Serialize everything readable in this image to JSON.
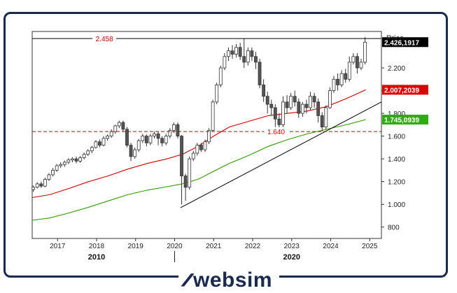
{
  "brand": {
    "name": "websim",
    "icon": "websim-w-logo-icon",
    "color": "#1a2a4f"
  },
  "chart_data": {
    "type": "candlestick",
    "price_axis_label": "Price",
    "y_ticks": [
      800,
      1000,
      1200,
      1400,
      1600,
      1800,
      2000,
      2200
    ],
    "y_tick_labels": [
      "800",
      "1.000",
      "1.200",
      "1.400",
      "1.600",
      "1.800",
      "2.000",
      "2.200"
    ],
    "x_ticks": [
      2017,
      2018,
      2019,
      2020,
      2021,
      2022,
      2023,
      2024,
      2025
    ],
    "x_tick_labels": [
      "2017",
      "2018",
      "2019",
      "2020",
      "2021",
      "2022",
      "2023",
      "2024",
      "2025"
    ],
    "decade_labels": [
      {
        "year": 2018,
        "label": "2010"
      },
      {
        "year": 2023,
        "label": "2020"
      }
    ],
    "decade_separator_year": 2020,
    "ylim": [
      700,
      2520
    ],
    "xlim": [
      2016.35,
      2025.3
    ],
    "grid": false,
    "horizontal_lines": [
      {
        "value": 2458,
        "label": "2.458",
        "color": "#000000",
        "style": "solid",
        "label_color": "#cc0000",
        "label_year": 2018.2
      },
      {
        "value": 1640,
        "label": "1.640",
        "color": "#cc0000",
        "style": "dashed",
        "label_color": "#cc0000",
        "label_year": 2022.6
      }
    ],
    "price_tags": [
      {
        "value": 2426.1917,
        "label": "2.426,1917",
        "bg": "#000000",
        "fg": "#ffffff"
      },
      {
        "value": 2007.2039,
        "label": "2.007,2039",
        "bg": "#dd0000",
        "fg": "#ffffff"
      },
      {
        "value": 1745.0939,
        "label": "1.745,0939",
        "bg": "#33aa11",
        "fg": "#ffffff"
      }
    ],
    "trendline": {
      "from": [
        2020.15,
        970
      ],
      "to": [
        2025.3,
        1900
      ],
      "color": "#000000"
    },
    "moving_averages": [
      {
        "color": "#cc0000",
        "points": [
          [
            2016.35,
            1060
          ],
          [
            2016.8,
            1085
          ],
          [
            2017.3,
            1140
          ],
          [
            2017.8,
            1200
          ],
          [
            2018.3,
            1250
          ],
          [
            2018.8,
            1310
          ],
          [
            2019.3,
            1360
          ],
          [
            2019.8,
            1400
          ],
          [
            2020.2,
            1440
          ],
          [
            2020.6,
            1510
          ],
          [
            2021.0,
            1600
          ],
          [
            2021.4,
            1680
          ],
          [
            2021.9,
            1730
          ],
          [
            2022.4,
            1780
          ],
          [
            2022.9,
            1800
          ],
          [
            2023.4,
            1820
          ],
          [
            2023.9,
            1860
          ],
          [
            2024.4,
            1930
          ],
          [
            2024.9,
            2007
          ]
        ]
      },
      {
        "color": "#339900",
        "points": [
          [
            2016.35,
            860
          ],
          [
            2016.8,
            880
          ],
          [
            2017.3,
            925
          ],
          [
            2017.8,
            975
          ],
          [
            2018.3,
            1030
          ],
          [
            2018.8,
            1085
          ],
          [
            2019.3,
            1125
          ],
          [
            2019.8,
            1155
          ],
          [
            2020.2,
            1180
          ],
          [
            2020.6,
            1220
          ],
          [
            2021.0,
            1290
          ],
          [
            2021.4,
            1360
          ],
          [
            2021.9,
            1430
          ],
          [
            2022.4,
            1510
          ],
          [
            2022.9,
            1570
          ],
          [
            2023.4,
            1620
          ],
          [
            2023.9,
            1660
          ],
          [
            2024.4,
            1700
          ],
          [
            2024.9,
            1745
          ]
        ]
      }
    ],
    "candles": [
      [
        2016.38,
        1130,
        1150,
        1110,
        1165
      ],
      [
        2016.48,
        1150,
        1180,
        1140,
        1195
      ],
      [
        2016.58,
        1180,
        1160,
        1145,
        1200
      ],
      [
        2016.68,
        1160,
        1220,
        1150,
        1235
      ],
      [
        2016.78,
        1220,
        1260,
        1205,
        1275
      ],
      [
        2016.88,
        1260,
        1300,
        1245,
        1320
      ],
      [
        2016.98,
        1300,
        1340,
        1285,
        1355
      ],
      [
        2017.08,
        1340,
        1350,
        1320,
        1370
      ],
      [
        2017.18,
        1350,
        1370,
        1330,
        1385
      ],
      [
        2017.28,
        1370,
        1390,
        1355,
        1405
      ],
      [
        2017.38,
        1390,
        1400,
        1370,
        1415
      ],
      [
        2017.48,
        1400,
        1380,
        1360,
        1420
      ],
      [
        2017.58,
        1380,
        1410,
        1365,
        1425
      ],
      [
        2017.68,
        1410,
        1440,
        1395,
        1455
      ],
      [
        2017.78,
        1440,
        1470,
        1425,
        1485
      ],
      [
        2017.88,
        1470,
        1500,
        1450,
        1515
      ],
      [
        2017.98,
        1500,
        1550,
        1490,
        1565
      ],
      [
        2018.08,
        1550,
        1520,
        1500,
        1570
      ],
      [
        2018.18,
        1520,
        1580,
        1510,
        1600
      ],
      [
        2018.28,
        1580,
        1600,
        1560,
        1615
      ],
      [
        2018.38,
        1600,
        1640,
        1585,
        1660
      ],
      [
        2018.48,
        1640,
        1690,
        1620,
        1700
      ],
      [
        2018.58,
        1690,
        1720,
        1670,
        1735
      ],
      [
        2018.68,
        1720,
        1660,
        1640,
        1735
      ],
      [
        2018.78,
        1660,
        1520,
        1500,
        1680
      ],
      [
        2018.88,
        1520,
        1420,
        1380,
        1540
      ],
      [
        2018.98,
        1420,
        1480,
        1400,
        1500
      ],
      [
        2019.08,
        1480,
        1560,
        1460,
        1575
      ],
      [
        2019.18,
        1560,
        1600,
        1540,
        1620
      ],
      [
        2019.28,
        1600,
        1540,
        1510,
        1615
      ],
      [
        2019.38,
        1540,
        1600,
        1520,
        1620
      ],
      [
        2019.48,
        1600,
        1620,
        1580,
        1640
      ],
      [
        2019.58,
        1620,
        1580,
        1520,
        1640
      ],
      [
        2019.68,
        1580,
        1540,
        1510,
        1600
      ],
      [
        2019.78,
        1540,
        1600,
        1520,
        1620
      ],
      [
        2019.88,
        1600,
        1650,
        1580,
        1670
      ],
      [
        2019.98,
        1650,
        1700,
        1630,
        1720
      ],
      [
        2020.08,
        1700,
        1600,
        1580,
        1720
      ],
      [
        2020.18,
        1600,
        1250,
        1000,
        1610
      ],
      [
        2020.28,
        1250,
        1150,
        1030,
        1270
      ],
      [
        2020.38,
        1150,
        1400,
        1130,
        1420
      ],
      [
        2020.48,
        1400,
        1450,
        1380,
        1470
      ],
      [
        2020.58,
        1450,
        1520,
        1430,
        1540
      ],
      [
        2020.68,
        1520,
        1480,
        1460,
        1540
      ],
      [
        2020.78,
        1480,
        1550,
        1460,
        1570
      ],
      [
        2020.88,
        1550,
        1650,
        1530,
        1670
      ],
      [
        2020.98,
        1650,
        1900,
        1640,
        1920
      ],
      [
        2021.08,
        1900,
        2050,
        1880,
        2070
      ],
      [
        2021.18,
        2050,
        2200,
        2030,
        2220
      ],
      [
        2021.28,
        2200,
        2300,
        2180,
        2330
      ],
      [
        2021.38,
        2300,
        2350,
        2260,
        2380
      ],
      [
        2021.48,
        2350,
        2320,
        2280,
        2400
      ],
      [
        2021.58,
        2320,
        2380,
        2290,
        2410
      ],
      [
        2021.68,
        2380,
        2300,
        2270,
        2420
      ],
      [
        2021.78,
        2300,
        2250,
        2200,
        2458
      ],
      [
        2021.88,
        2250,
        2350,
        2220,
        2380
      ],
      [
        2021.98,
        2350,
        2300,
        2260,
        2380
      ],
      [
        2022.08,
        2300,
        2250,
        2190,
        2340
      ],
      [
        2022.18,
        2250,
        2050,
        2020,
        2280
      ],
      [
        2022.28,
        2050,
        1950,
        1900,
        2100
      ],
      [
        2022.38,
        1950,
        1880,
        1800,
        1990
      ],
      [
        2022.48,
        1880,
        1850,
        1780,
        1920
      ],
      [
        2022.58,
        1850,
        1750,
        1680,
        1880
      ],
      [
        2022.68,
        1750,
        1700,
        1630,
        1800
      ],
      [
        2022.78,
        1700,
        1900,
        1680,
        1950
      ],
      [
        2022.88,
        1900,
        1850,
        1800,
        1960
      ],
      [
        2022.98,
        1850,
        1950,
        1830,
        1980
      ],
      [
        2023.08,
        1950,
        1900,
        1860,
        2000
      ],
      [
        2023.18,
        1900,
        1800,
        1760,
        1930
      ],
      [
        2023.28,
        1800,
        1880,
        1770,
        1900
      ],
      [
        2023.38,
        1880,
        1850,
        1800,
        1920
      ],
      [
        2023.48,
        1850,
        1950,
        1830,
        1990
      ],
      [
        2023.58,
        1950,
        1900,
        1850,
        1980
      ],
      [
        2023.68,
        1900,
        1780,
        1720,
        1930
      ],
      [
        2023.78,
        1780,
        1680,
        1640,
        1810
      ],
      [
        2023.88,
        1680,
        1850,
        1660,
        1870
      ],
      [
        2023.98,
        1850,
        2000,
        1840,
        2030
      ],
      [
        2024.08,
        2000,
        2100,
        1980,
        2130
      ],
      [
        2024.18,
        2100,
        2050,
        2000,
        2150
      ],
      [
        2024.28,
        2050,
        2150,
        2030,
        2180
      ],
      [
        2024.38,
        2150,
        2100,
        2070,
        2190
      ],
      [
        2024.48,
        2100,
        2250,
        2080,
        2300
      ],
      [
        2024.58,
        2250,
        2300,
        2230,
        2330
      ],
      [
        2024.68,
        2300,
        2200,
        2150,
        2330
      ],
      [
        2024.78,
        2200,
        2250,
        2180,
        2280
      ],
      [
        2024.88,
        2250,
        2426,
        2230,
        2470
      ]
    ]
  }
}
